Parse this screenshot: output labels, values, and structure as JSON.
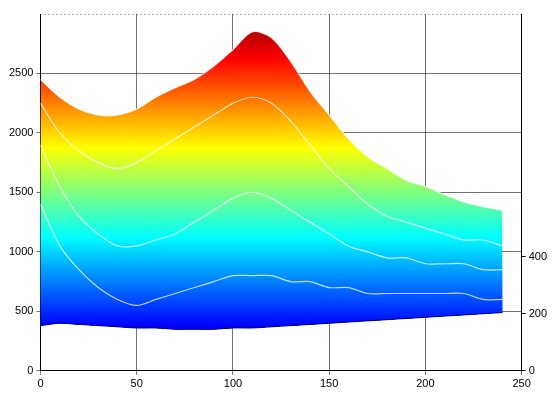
{
  "chart_data": {
    "type": "area",
    "x": [
      0,
      10,
      20,
      30,
      40,
      50,
      60,
      70,
      80,
      90,
      100,
      110,
      120,
      130,
      140,
      150,
      160,
      170,
      180,
      190,
      200,
      210,
      220,
      230,
      240
    ],
    "series": [
      {
        "values": [
          2450,
          2300,
          2200,
          2150,
          2150,
          2200,
          2300,
          2380,
          2450,
          2560,
          2700,
          2850,
          2800,
          2600,
          2350,
          2150,
          1950,
          1800,
          1700,
          1600,
          1550,
          1480,
          1420,
          1380,
          1350
        ]
      },
      {
        "values": [
          2250,
          2000,
          1850,
          1750,
          1700,
          1750,
          1850,
          1950,
          2050,
          2150,
          2250,
          2300,
          2250,
          2100,
          1900,
          1700,
          1550,
          1400,
          1300,
          1250,
          1200,
          1150,
          1100,
          1100,
          1050
        ]
      },
      {
        "values": [
          1900,
          1550,
          1300,
          1150,
          1050,
          1050,
          1100,
          1150,
          1250,
          1350,
          1450,
          1500,
          1450,
          1350,
          1250,
          1150,
          1050,
          1000,
          950,
          950,
          900,
          900,
          900,
          850,
          850
        ]
      },
      {
        "values": [
          1400,
          1050,
          850,
          700,
          600,
          550,
          600,
          650,
          700,
          750,
          800,
          800,
          800,
          750,
          750,
          700,
          700,
          650,
          650,
          650,
          650,
          650,
          650,
          600,
          600
        ]
      },
      {
        "values": [
          380,
          400,
          390,
          380,
          370,
          360,
          360,
          350,
          350,
          350,
          360,
          360,
          370,
          380,
          390,
          400,
          410,
          420,
          430,
          440,
          450,
          460,
          470,
          480,
          490
        ]
      }
    ],
    "xlim": [
      0,
      250
    ],
    "xticks": [
      0,
      50,
      100,
      150,
      200,
      250
    ],
    "ylim": [
      0,
      3000
    ],
    "yticks": [
      0,
      500,
      1000,
      1500,
      2000,
      2500
    ],
    "y2lim": [
      0,
      1250
    ],
    "y2ticks": [
      0,
      200,
      400
    ],
    "grid": true
  }
}
